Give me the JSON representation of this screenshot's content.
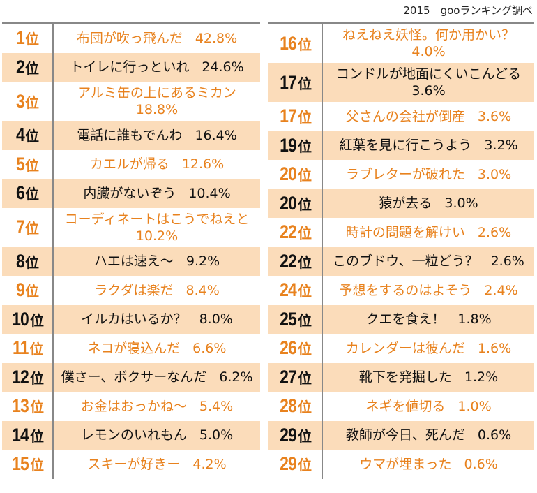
{
  "source": "2015　gooランキング調べ",
  "rank_suffix": "位",
  "colors": {
    "accent": "#e8821e",
    "row_alt_bg": "#fbdcba",
    "text": "#111111"
  },
  "left": [
    {
      "rank": "1",
      "name": "布団が吹っ飛んだ",
      "pct": "42.8%"
    },
    {
      "rank": "2",
      "name": "トイレに行っといれ",
      "pct": "24.6%"
    },
    {
      "rank": "3",
      "name": "アルミ缶の上にあるミカン",
      "pct": "18.8%"
    },
    {
      "rank": "4",
      "name": "電話に誰もでんわ",
      "pct": "16.4%"
    },
    {
      "rank": "5",
      "name": "カエルが帰る",
      "pct": "12.6%"
    },
    {
      "rank": "6",
      "name": "内臓がないぞう",
      "pct": "10.4%"
    },
    {
      "rank": "7",
      "name": "コーディネートはこうでねえと",
      "pct": "10.2%"
    },
    {
      "rank": "8",
      "name": "ハエは速え〜",
      "pct": "9.2%"
    },
    {
      "rank": "9",
      "name": "ラクダは楽だ",
      "pct": "8.4%"
    },
    {
      "rank": "10",
      "name": "イルカはいるか？",
      "pct": "8.0%"
    },
    {
      "rank": "11",
      "name": "ネコが寝込んだ",
      "pct": "6.6%"
    },
    {
      "rank": "12",
      "name": "僕さー、ボクサーなんだ",
      "pct": "6.2%"
    },
    {
      "rank": "13",
      "name": "お金はおっかね〜",
      "pct": "5.4%"
    },
    {
      "rank": "14",
      "name": "レモンのいれもん",
      "pct": "5.0%"
    },
    {
      "rank": "15",
      "name": "スキーが好きー",
      "pct": "4.2%"
    }
  ],
  "right": [
    {
      "rank": "16",
      "name": "ねえねえ妖怪。何か用かい？",
      "pct": "4.0%"
    },
    {
      "rank": "17",
      "name": "コンドルが地面にくいこんどる",
      "pct": "3.6%"
    },
    {
      "rank": "17",
      "name": "父さんの会社が倒産",
      "pct": "3.6%"
    },
    {
      "rank": "19",
      "name": "紅葉を見に行こうよう",
      "pct": "3.2%"
    },
    {
      "rank": "20",
      "name": "ラブレターが破れた",
      "pct": "3.0%"
    },
    {
      "rank": "20",
      "name": "猿が去る",
      "pct": "3.0%"
    },
    {
      "rank": "22",
      "name": "時計の問題を解けい",
      "pct": "2.6%"
    },
    {
      "rank": "22",
      "name": "このブドウ、一粒どう？",
      "pct": "2.6%"
    },
    {
      "rank": "24",
      "name": "予想をするのはよそう",
      "pct": "2.4%"
    },
    {
      "rank": "25",
      "name": "クエを食え！",
      "pct": "1.8%"
    },
    {
      "rank": "26",
      "name": "カレンダーは彼んだ",
      "pct": "1.6%"
    },
    {
      "rank": "27",
      "name": "靴下を発掘した",
      "pct": "1.2%"
    },
    {
      "rank": "28",
      "name": "ネギを値切る",
      "pct": "1.0%"
    },
    {
      "rank": "29",
      "name": "教師が今日、死んだ",
      "pct": "0.6%"
    },
    {
      "rank": "29",
      "name": "ウマが埋まった",
      "pct": "0.6%"
    }
  ]
}
